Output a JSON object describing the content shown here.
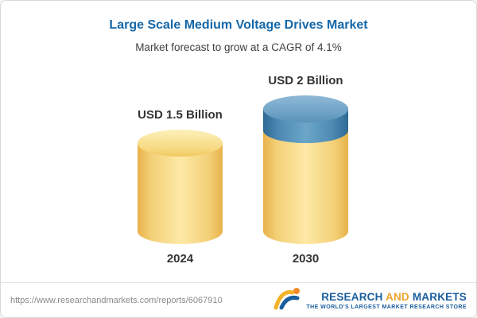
{
  "header": {
    "title": "Large Scale Medium Voltage Drives Market",
    "subtitle": "Market forecast to grow at a CAGR of 4.1%"
  },
  "chart_data": {
    "type": "bar",
    "variant": "3d-cylinder",
    "categories": [
      "2024",
      "2030"
    ],
    "values": [
      1.5,
      2
    ],
    "value_labels": [
      "USD 1.5 Billion",
      "USD 2 Billion"
    ],
    "unit": "USD Billion",
    "cagr": "4.1%",
    "ylim": [
      0,
      2
    ],
    "grid": false,
    "legend": "none",
    "colors": {
      "bar": "#f3d077",
      "growth_segment": "#4d89b2"
    },
    "notes": "2030 bar has a blue top segment representing growth of 0.5 billion over 2024"
  },
  "footer": {
    "url": "https://www.researchandmarkets.com/reports/6067910",
    "brand": {
      "word1": "RESEARCH",
      "word2": "AND",
      "word3": "MARKETS",
      "tagline": "THE WORLD'S LARGEST MARKET RESEARCH STORE"
    }
  }
}
